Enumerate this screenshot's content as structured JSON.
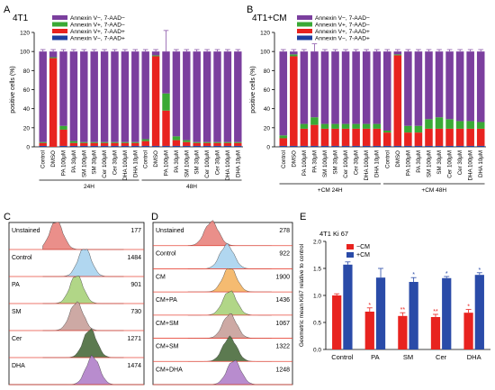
{
  "panel_letters": {
    "a": "A",
    "b": "B",
    "c": "C",
    "d": "D",
    "e": "E"
  },
  "colors": {
    "purple": "#7b3f9e",
    "green": "#3aa935",
    "red": "#e8231f",
    "blue": "#1f3fa0",
    "flow_red": "#e8837d",
    "flow_blue": "#a9d3ee",
    "flow_orange": "#f4b462",
    "flow_green": "#a9d27a",
    "flow_mauve": "#c8a09a",
    "flow_dgreen": "#4a6b3d",
    "flow_violet": "#b07fc9",
    "e_red": "#e8231f",
    "e_blue": "#2a4ba8"
  },
  "legend_items": [
    "Annexin V−, 7-AAD−",
    "Annexin V+, 7-AAD−",
    "Annexin V+, 7-AAD+",
    "Annexin V−, 7-AAD+"
  ],
  "chart_data": [
    {
      "id": "A",
      "type": "bar",
      "stacked": true,
      "title": "4T1",
      "ylabel": "positive cells (%)",
      "ylim": [
        0,
        120
      ],
      "yticks": [
        0,
        20,
        40,
        60,
        80,
        100,
        120
      ],
      "categories": [
        "Control",
        "DMSO",
        "PA 100μM",
        "PA 30μM",
        "SM 100μM",
        "SM 30μM",
        "Cer 100μM",
        "Cer 30μM",
        "DHA 100μM",
        "DHA 10μM",
        "Control",
        "DMSO",
        "PA 100μM",
        "PA 30μM",
        "SM 100μM",
        "SM 30μM",
        "Cer 100μM",
        "Cer 30μM",
        "DHA 100μM",
        "DHA 10μM"
      ],
      "groups": [
        {
          "label": "24H",
          "from": 0,
          "to": 9
        },
        {
          "label": "48H",
          "from": 10,
          "to": 19
        }
      ],
      "series": [
        {
          "name": "Annexin V−, 7-AAD+",
          "values": [
            1,
            0,
            1,
            1,
            1,
            1,
            1,
            1,
            1,
            1,
            1,
            1,
            1,
            1,
            1,
            1,
            1,
            1,
            1,
            1
          ]
        },
        {
          "name": "Annexin V+, 7-AAD+",
          "values": [
            3,
            93,
            17,
            3,
            3,
            3,
            3,
            3,
            3,
            3,
            5,
            94,
            37,
            6,
            4,
            3,
            3,
            3,
            3,
            3
          ]
        },
        {
          "name": "Annexin V+, 7-AAD−",
          "values": [
            1,
            1,
            4,
            2,
            1,
            1,
            1,
            1,
            1,
            1,
            2,
            1,
            18,
            4,
            2,
            1,
            1,
            1,
            1,
            1
          ]
        },
        {
          "name": "Annexin V−, 7-AAD−",
          "values": [
            95,
            6,
            78,
            94,
            95,
            95,
            95,
            95,
            95,
            95,
            92,
            4,
            44,
            89,
            93,
            95,
            95,
            95,
            95,
            95
          ]
        }
      ],
      "errors": [
        2,
        2,
        2,
        2,
        2,
        2,
        2,
        2,
        2,
        2,
        2,
        2,
        22,
        2,
        2,
        2,
        2,
        2,
        2,
        2
      ]
    },
    {
      "id": "B",
      "type": "bar",
      "stacked": true,
      "title": "4T1+CM",
      "ylabel": "positive cells (%)",
      "ylim": [
        0,
        120
      ],
      "yticks": [
        0,
        20,
        40,
        60,
        80,
        100,
        120
      ],
      "categories": [
        "Control",
        "DMSO",
        "PA 100μM",
        "PA 30μM",
        "SM 100μM",
        "SM 30μM",
        "Cer 100μM",
        "Cer 30μM",
        "DHA 100μM",
        "DHA 10μM",
        "Control",
        "DMSO",
        "PA 100μM",
        "PA 30μM",
        "SM 100μM",
        "SM 30μM",
        "Cer 100μM",
        "Cer 30μM",
        "DHA 100μM",
        "DHA 10μM"
      ],
      "groups": [
        {
          "label": "+CM 24H",
          "from": 0,
          "to": 9
        },
        {
          "label": "+CM 48H",
          "from": 10,
          "to": 19
        }
      ],
      "series": [
        {
          "name": "Annexin V−, 7-AAD+",
          "values": [
            1,
            1,
            1,
            1,
            1,
            1,
            1,
            1,
            1,
            1,
            1,
            1,
            1,
            1,
            1,
            1,
            1,
            1,
            1,
            1
          ]
        },
        {
          "name": "Annexin V+, 7-AAD+",
          "values": [
            8,
            94,
            18,
            22,
            18,
            18,
            18,
            18,
            18,
            18,
            14,
            95,
            14,
            14,
            18,
            18,
            18,
            18,
            18,
            18
          ]
        },
        {
          "name": "Annexin V+, 7-AAD−",
          "values": [
            3,
            2,
            5,
            8,
            5,
            5,
            5,
            5,
            5,
            5,
            2,
            1,
            7,
            7,
            10,
            12,
            10,
            8,
            8,
            7
          ]
        },
        {
          "name": "Annexin V−, 7-AAD−",
          "values": [
            88,
            3,
            76,
            69,
            76,
            76,
            76,
            76,
            76,
            76,
            83,
            3,
            78,
            78,
            71,
            69,
            71,
            73,
            73,
            74
          ]
        }
      ],
      "errors": [
        2,
        2,
        2,
        8,
        2,
        2,
        2,
        2,
        2,
        2,
        2,
        2,
        2,
        2,
        2,
        2,
        2,
        2,
        2,
        2
      ]
    },
    {
      "id": "E",
      "type": "bar",
      "title": "4T1 Ki 67",
      "ylabel": "Geometric mean Ki67 relative to control",
      "ylim": [
        0,
        2.0
      ],
      "yticks": [
        0.0,
        0.5,
        1.0,
        1.5,
        2.0
      ],
      "ytick_labels": [
        "0.0",
        "0.5",
        "1.0",
        "1.5",
        "2.0"
      ],
      "categories": [
        "Control",
        "PA",
        "SM",
        "Cer",
        "DHA"
      ],
      "series": [
        {
          "name": "−CM",
          "values": [
            1.0,
            0.7,
            0.62,
            0.6,
            0.68
          ],
          "errors": [
            0.03,
            0.07,
            0.06,
            0.05,
            0.06
          ],
          "stars": [
            "",
            "*",
            "**",
            "**",
            "*"
          ]
        },
        {
          "name": "+CM",
          "values": [
            1.57,
            1.33,
            1.25,
            1.32,
            1.38
          ],
          "errors": [
            0.05,
            0.17,
            0.08,
            0.03,
            0.04
          ],
          "stars": [
            "",
            "",
            "*",
            "*",
            "*"
          ]
        }
      ]
    }
  ],
  "flow_c": {
    "rows": [
      {
        "label": "Unstained",
        "count": "177"
      },
      {
        "label": "Control",
        "count": "1484"
      },
      {
        "label": "PA",
        "count": "901"
      },
      {
        "label": "SM",
        "count": "730"
      },
      {
        "label": "Cer",
        "count": "1271"
      },
      {
        "label": "DHA",
        "count": "1474"
      }
    ]
  },
  "flow_d": {
    "rows": [
      {
        "label": "Unstained",
        "count": "278"
      },
      {
        "label": "Control",
        "count": "922"
      },
      {
        "label": "CM",
        "count": "1900"
      },
      {
        "label": "CM+PA",
        "count": "1436"
      },
      {
        "label": "CM+SM",
        "count": "1067"
      },
      {
        "label": "CM+SM",
        "count": "1322"
      },
      {
        "label": "CM+DHA",
        "count": "1248"
      }
    ]
  }
}
